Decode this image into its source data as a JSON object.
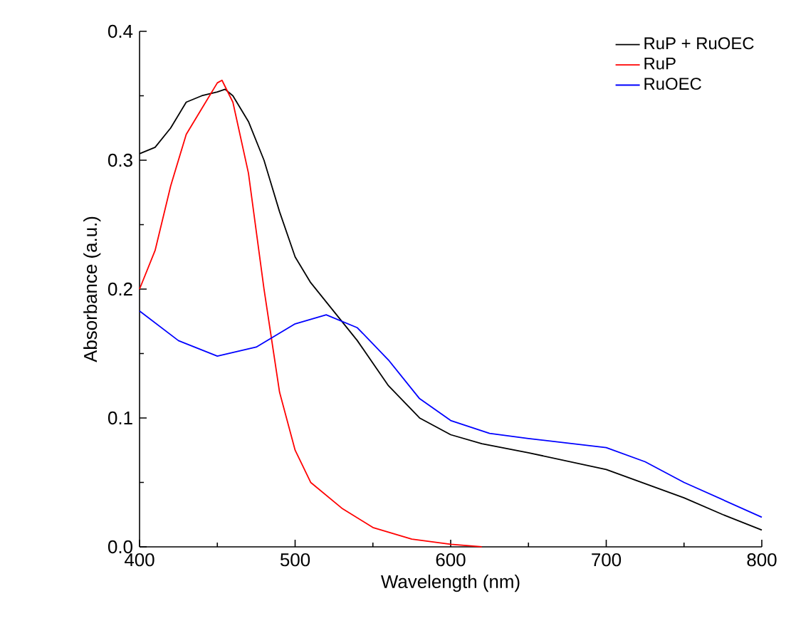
{
  "chart_data": {
    "type": "line",
    "xlabel": "Wavelength (nm)",
    "ylabel": "Absorbance (a.u.)",
    "xlim": [
      400,
      800
    ],
    "ylim": [
      0,
      0.4
    ],
    "xticks": [
      400,
      500,
      600,
      700,
      800
    ],
    "yticks": [
      {
        "value": 0,
        "label": "0.0"
      },
      0.1,
      0.2,
      0.3,
      0.4
    ],
    "legend": "top right",
    "grid": false,
    "marker": "none",
    "line_style": "solid",
    "series": [
      {
        "name": "RuP + RuOEC",
        "color": "#000000",
        "x": [
          400,
          410,
          420,
          430,
          440,
          450,
          455,
          460,
          470,
          480,
          490,
          500,
          510,
          520,
          540,
          560,
          580,
          600,
          620,
          650,
          700,
          750,
          775,
          800
        ],
        "values": [
          0.305,
          0.31,
          0.325,
          0.345,
          0.35,
          0.353,
          0.355,
          0.35,
          0.33,
          0.3,
          0.26,
          0.225,
          0.205,
          0.19,
          0.16,
          0.125,
          0.1,
          0.087,
          0.08,
          0.073,
          0.06,
          0.038,
          0.025,
          0.013
        ]
      },
      {
        "name": "RuP",
        "color": "#ff0000",
        "x": [
          400,
          410,
          420,
          430,
          440,
          450,
          453,
          460,
          470,
          480,
          490,
          500,
          510,
          520,
          530,
          550,
          575,
          600,
          620
        ],
        "values": [
          0.2,
          0.23,
          0.28,
          0.32,
          0.34,
          0.36,
          0.362,
          0.345,
          0.29,
          0.2,
          0.12,
          0.075,
          0.05,
          0.04,
          0.03,
          0.015,
          0.006,
          0.002,
          0.0
        ]
      },
      {
        "name": "RuOEC",
        "color": "#0000ff",
        "x": [
          400,
          425,
          450,
          475,
          500,
          520,
          540,
          560,
          580,
          600,
          625,
          650,
          700,
          725,
          750,
          800
        ],
        "values": [
          0.183,
          0.16,
          0.148,
          0.155,
          0.173,
          0.18,
          0.17,
          0.145,
          0.115,
          0.098,
          0.088,
          0.084,
          0.077,
          0.066,
          0.05,
          0.023
        ]
      }
    ]
  }
}
